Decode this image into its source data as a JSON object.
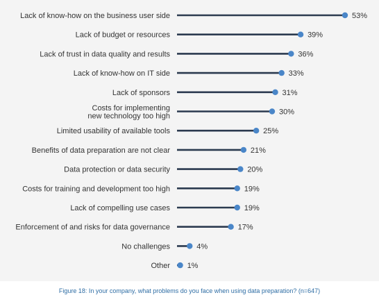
{
  "chart_data": {
    "type": "lollipop",
    "orientation": "horizontal",
    "unit": "%",
    "xlim": [
      0,
      53
    ],
    "categories": [
      [
        "Lack of know-how on the business user side"
      ],
      [
        "Lack of budget or resources"
      ],
      [
        "Lack of trust in data quality and results"
      ],
      [
        "Lack of know-how on IT side"
      ],
      [
        "Lack of sponsors"
      ],
      [
        "Costs for implementing",
        "new technology too high"
      ],
      [
        "Limited usability of available tools"
      ],
      [
        "Benefits of data preparation are not clear"
      ],
      [
        "Data protection or data security"
      ],
      [
        "Costs for training and development too high"
      ],
      [
        "Lack of compelling use cases"
      ],
      [
        "Enforcement of and risks for data governance"
      ],
      [
        "No challenges"
      ],
      [
        "Other"
      ]
    ],
    "values": [
      53,
      39,
      36,
      33,
      31,
      30,
      25,
      21,
      20,
      19,
      19,
      17,
      4,
      1
    ],
    "value_labels": [
      "53%",
      "39%",
      "36%",
      "33%",
      "31%",
      "30%",
      "25%",
      "21%",
      "20%",
      "19%",
      "19%",
      "17%",
      "4%",
      "1%"
    ],
    "colors": {
      "line": "#2b3a4f",
      "dot": "#4a86c8",
      "background": "#f4f4f4"
    }
  },
  "caption": "Figure 18: In your company, what problems do you face when using data preparation? (n=647)"
}
